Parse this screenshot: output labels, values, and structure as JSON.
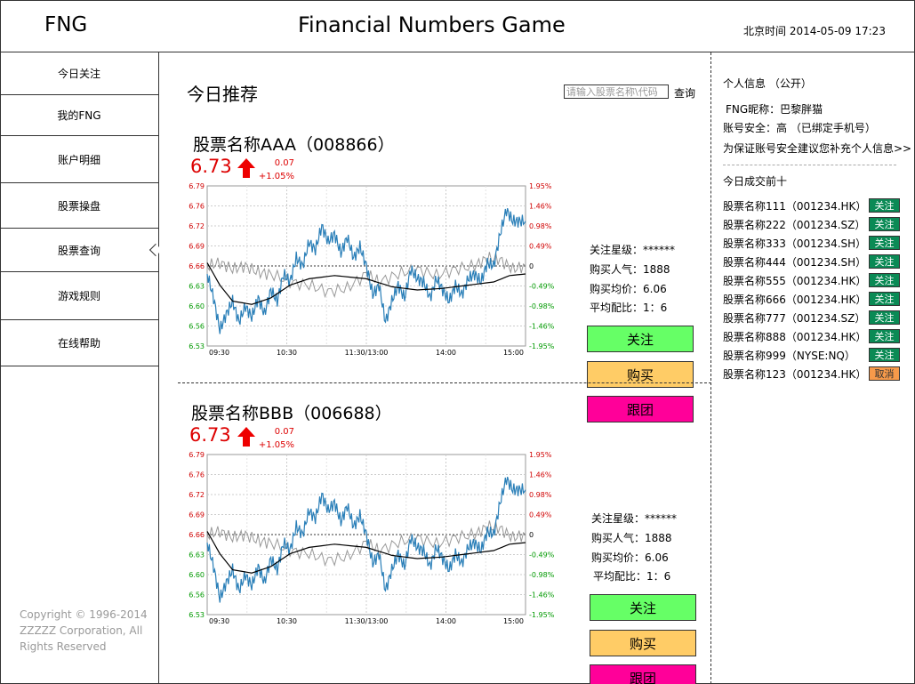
{
  "header": {
    "logo": "FNG",
    "title": "Financial Numbers Game",
    "clock": "北京时间 2014-05-09 17:23"
  },
  "sidebar": {
    "items": [
      {
        "label": "今日关注"
      },
      {
        "label": "我的FNG"
      },
      {
        "label": "账户明细"
      },
      {
        "label": "股票操盘"
      },
      {
        "label": "股票查询"
      },
      {
        "label": "游戏规则"
      },
      {
        "label": "在线帮助"
      }
    ],
    "copyright": "Copyright © 1996-2014 ZZZZZ Corporation, All Rights Reserved"
  },
  "main": {
    "section_title": "今日推荐",
    "search_placeholder": "请输入股票名称\\代码",
    "search_label": "查询",
    "stocks": [
      {
        "name": "股票名称AAA（008866）",
        "price": "6.73",
        "change": "0.07",
        "change_pct": "+1.05%",
        "info": [
          "关注星级：******",
          "购买人气：1888",
          "购买均价：6.06",
          "平均配比：1：6"
        ],
        "buttons": {
          "follow": "关注",
          "buy": "购买",
          "team": "跟团"
        }
      },
      {
        "name": "股票名称BBB（006688）",
        "price": "6.73",
        "change": "0.07",
        "change_pct": "+1.05%",
        "info": [
          "关注星级：******",
          "购买人气：1888",
          "购买均价：6.06",
          "平均配比：1：6"
        ],
        "buttons": {
          "follow": "关注",
          "buy": "购买",
          "team": "跟团"
        }
      }
    ]
  },
  "chart_data": [
    {
      "type": "line",
      "x_ticks": [
        "09:30",
        "10:30",
        "11:30/13:00",
        "14:00",
        "15:00"
      ],
      "y_ticks_left": [
        "6.79",
        "6.76",
        "6.72",
        "6.69",
        "6.66",
        "6.63",
        "6.60",
        "6.56",
        "6.53"
      ],
      "y_ticks_right": [
        "1.95%",
        "1.46%",
        "0.98%",
        "0.49%",
        "0",
        "-0.49%",
        "-0.98%",
        "-1.46%",
        "-1.95%"
      ],
      "ylim": [
        6.53,
        6.79
      ],
      "reference": 6.66,
      "colors": {
        "price": "#2a7fb8",
        "average": "#000000",
        "index": "#999999",
        "up_labels": "#d00000",
        "down_labels": "#009900"
      }
    },
    {
      "type": "line",
      "x_ticks": [
        "09:30",
        "10:30",
        "11:30/13:00",
        "14:00",
        "15:00"
      ],
      "y_ticks_left": [
        "6.79",
        "6.76",
        "6.72",
        "6.69",
        "6.66",
        "6.63",
        "6.60",
        "6.56",
        "6.53"
      ],
      "y_ticks_right": [
        "1.95%",
        "1.46%",
        "0.98%",
        "0.49%",
        "0",
        "-0.49%",
        "-0.98%",
        "-1.46%",
        "-1.95%"
      ],
      "ylim": [
        6.53,
        6.79
      ],
      "reference": 6.66,
      "colors": {
        "price": "#2a7fb8",
        "average": "#000000",
        "index": "#999999",
        "up_labels": "#d00000",
        "down_labels": "#009900"
      }
    }
  ],
  "rightbar": {
    "personal_title": "个人信息 （公开）",
    "nickname": "FNG昵称：巴黎胖猫",
    "security": "账号安全：高 （已绑定手机号）",
    "suggest": "为保证账号安全建议您补充个人信息>>",
    "top_title": "今日成交前十",
    "top_list": [
      {
        "name": "股票名称111（001234.HK）",
        "action": "关注",
        "followed": false
      },
      {
        "name": "股票名称222（001234.SZ）",
        "action": "关注",
        "followed": false
      },
      {
        "name": "股票名称333（001234.SH）",
        "action": "关注",
        "followed": false
      },
      {
        "name": "股票名称444（001234.SH）",
        "action": "关注",
        "followed": false
      },
      {
        "name": "股票名称555（001234.HK）",
        "action": "关注",
        "followed": false
      },
      {
        "name": "股票名称666（001234.HK）",
        "action": "关注",
        "followed": false
      },
      {
        "name": "股票名称777（001234.SZ）",
        "action": "关注",
        "followed": false
      },
      {
        "name": "股票名称888（001234.HK）",
        "action": "关注",
        "followed": false
      },
      {
        "name": "股票名称999（NYSE:NQ）",
        "action": "关注",
        "followed": false
      },
      {
        "name": "股票名称123（001234.HK）",
        "action": "取消",
        "followed": true
      }
    ]
  }
}
